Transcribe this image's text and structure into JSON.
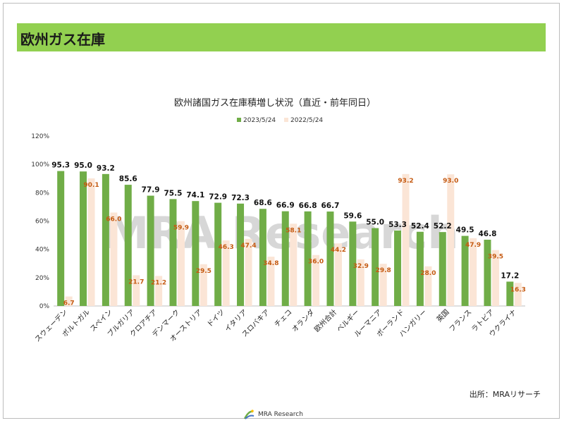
{
  "header": {
    "title": "欧州ガス在庫"
  },
  "watermark": "MRA Research",
  "source": "出所：MRAリサーチ",
  "logo": {
    "text": "MRA Research"
  },
  "colors": {
    "header": "#92d050",
    "series1": "#70ad47",
    "series2": "#fbe5d6",
    "label2": "#c55a11"
  },
  "chart_data": {
    "type": "bar",
    "title": "欧州諸国ガス在庫積増し状況（直近・前年同日）",
    "categories": [
      "スウェーデン",
      "ポルトガル",
      "スペイン",
      "ブルガリア",
      "クロアチア",
      "デンマーク",
      "オーストリア",
      "ドイツ",
      "イタリア",
      "スロバキア",
      "チェコ",
      "オランダ",
      "欧州合計",
      "ベルギー",
      "ルーマニア",
      "ポーランド",
      "ハンガリー",
      "英国",
      "フランス",
      "ラトビア",
      "ウクライナ"
    ],
    "series": [
      {
        "name": "2023/5/24",
        "values": [
          95.3,
          95.0,
          93.2,
          85.6,
          77.9,
          75.5,
          74.1,
          72.9,
          72.3,
          68.6,
          66.9,
          66.8,
          66.7,
          59.6,
          55.0,
          53.3,
          52.4,
          52.2,
          49.5,
          46.8,
          17.2
        ]
      },
      {
        "name": "2022/5/24",
        "values": [
          6.7,
          90.1,
          66.0,
          21.7,
          21.2,
          59.9,
          29.5,
          46.3,
          47.4,
          34.8,
          58.1,
          36.0,
          44.2,
          32.9,
          29.8,
          93.2,
          28.0,
          93.0,
          47.9,
          39.5,
          16.3
        ]
      }
    ],
    "yticks": [
      "0%",
      "20%",
      "40%",
      "60%",
      "80%",
      "100%",
      "120%"
    ],
    "ylim": [
      0,
      120
    ],
    "legend": "top-center",
    "grid": false
  }
}
